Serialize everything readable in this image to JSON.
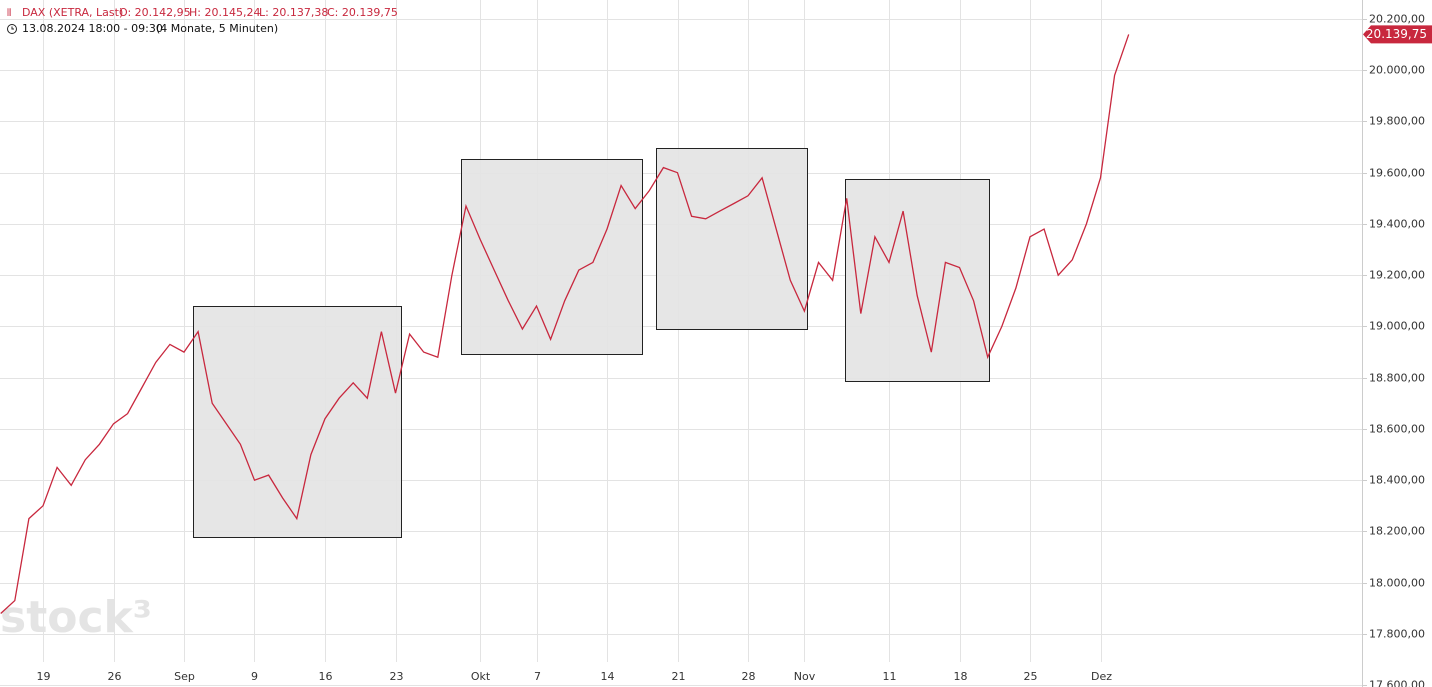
{
  "chart_data": {
    "type": "line",
    "title": "DAX (XETRA, Last)",
    "ohlc": [
      "O: 20.142,95",
      "H: 20.145,24",
      "L: 20.137,38",
      "C: 20.139,75"
    ],
    "subtitle": "13.08.2024 18:00 - 09:30",
    "period": "(4 Monate, 5 Minuten)",
    "watermark": "stock³",
    "categories": [
      null,
      null,
      null,
      "19",
      null,
      null,
      null,
      null,
      "26",
      null,
      null,
      null,
      null,
      "Sep",
      null,
      null,
      null,
      null,
      "9",
      null,
      null,
      null,
      null,
      "16",
      null,
      null,
      null,
      null,
      "23",
      null,
      null,
      null,
      null,
      null,
      "Okt",
      null,
      null,
      null,
      "7",
      null,
      null,
      null,
      null,
      "14",
      null,
      null,
      null,
      null,
      "21",
      null,
      null,
      null,
      null,
      "28",
      null,
      null,
      null,
      "Nov",
      null,
      null,
      null,
      null,
      null,
      "11",
      null,
      null,
      null,
      null,
      "18",
      null,
      null,
      null,
      null,
      "25",
      null,
      null,
      null,
      null,
      "Dez",
      null,
      null
    ],
    "series": [
      {
        "name": "DAX",
        "color": "#c8283e",
        "values": [
          17880,
          17930,
          18250,
          18300,
          18450,
          18380,
          18480,
          18540,
          18620,
          18660,
          18760,
          18860,
          18930,
          18900,
          18980,
          18700,
          18620,
          18540,
          18400,
          18420,
          18330,
          18250,
          18500,
          18640,
          18720,
          18780,
          18720,
          18980,
          18740,
          18970,
          18900,
          18880,
          19200,
          19470,
          19340,
          19220,
          19100,
          18990,
          19080,
          18950,
          19100,
          19220,
          19250,
          19380,
          19550,
          19460,
          19530,
          19620,
          19600,
          19430,
          19420,
          19450,
          19480,
          19510,
          19580,
          19380,
          19180,
          19060,
          19250,
          19180,
          19500,
          19050,
          19350,
          19250,
          19450,
          19120,
          18900,
          19250,
          19230,
          19100,
          18880,
          19000,
          19150,
          19350,
          19380,
          19200,
          19260,
          19400,
          19580,
          19980,
          20139.75
        ]
      }
    ],
    "price_tag": "20.139,75",
    "ylim": [
      17593,
      20274
    ],
    "yticks": [
      {
        "value": 20200,
        "label": "20.200,00"
      },
      {
        "value": 20000,
        "label": "20.000,00"
      },
      {
        "value": 19800,
        "label": "19.800,00"
      },
      {
        "value": 19600,
        "label": "19.600,00"
      },
      {
        "value": 19400,
        "label": "19.400,00"
      },
      {
        "value": 19200,
        "label": "19.200,00"
      },
      {
        "value": 19000,
        "label": "19.000,00"
      },
      {
        "value": 18800,
        "label": "18.800,00"
      },
      {
        "value": 18600,
        "label": "18.600,00"
      },
      {
        "value": 18400,
        "label": "18.400,00"
      },
      {
        "value": 18200,
        "label": "18.200,00"
      },
      {
        "value": 18000,
        "label": "18.000,00"
      },
      {
        "value": 17800,
        "label": "17.800,00"
      },
      {
        "value": 17600,
        "label": "17.600,00"
      }
    ],
    "grid": true
  }
}
